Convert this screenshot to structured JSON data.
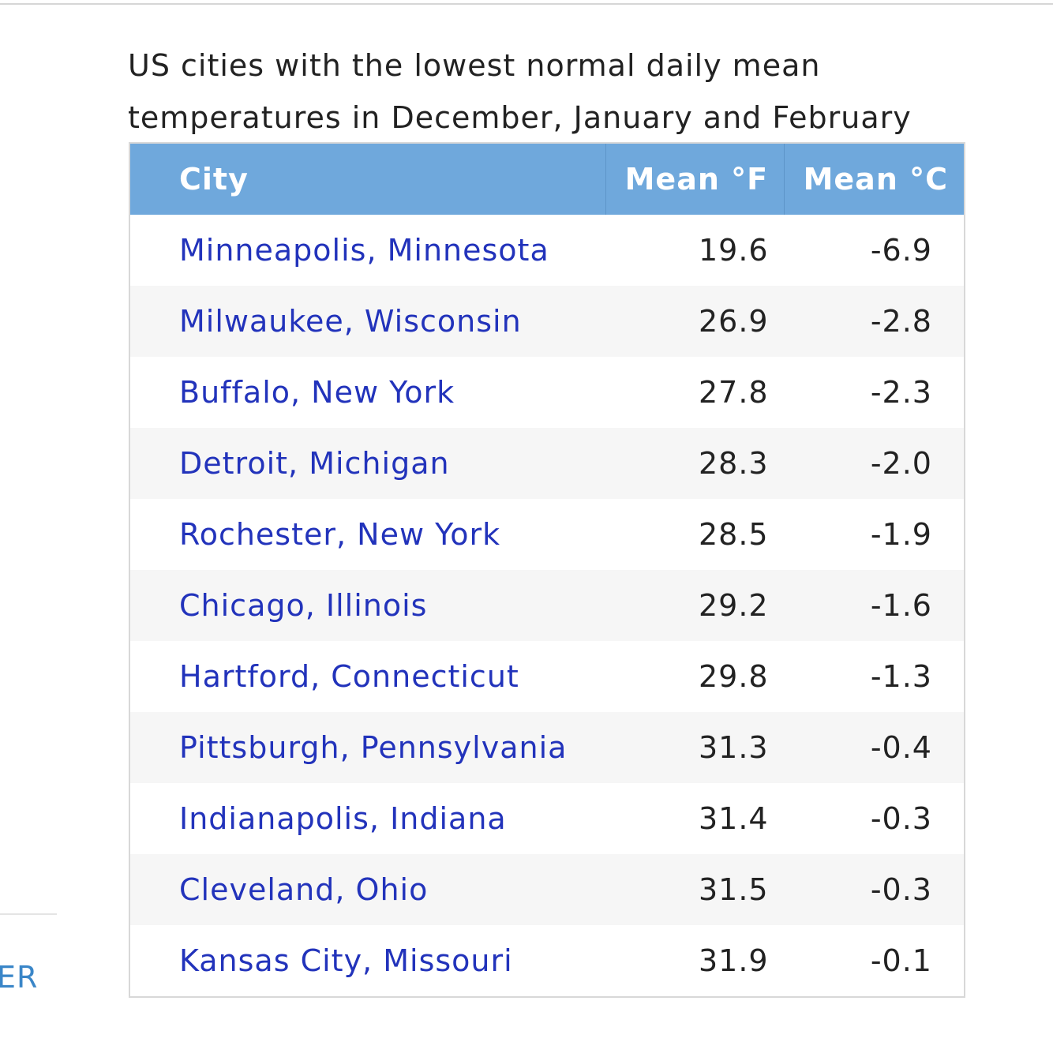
{
  "caption": "US cities with the lowest normal daily mean temperatures in December, January and February",
  "side_fragment": "ER",
  "table": {
    "headers": [
      "City",
      "Mean °F",
      "Mean °C"
    ],
    "rows": [
      [
        "Minneapolis, Minnesota",
        "19.6",
        "-6.9"
      ],
      [
        "Milwaukee, Wisconsin",
        "26.9",
        "-2.8"
      ],
      [
        "Buffalo, New York",
        "27.8",
        "-2.3"
      ],
      [
        "Detroit, Michigan",
        "28.3",
        "-2.0"
      ],
      [
        "Rochester, New York",
        "28.5",
        "-1.9"
      ],
      [
        "Chicago, Illinois",
        "29.2",
        "-1.6"
      ],
      [
        "Hartford, Connecticut",
        "29.8",
        "-1.3"
      ],
      [
        "Pittsburgh, Pennsylvania",
        "31.3",
        "-0.4"
      ],
      [
        "Indianapolis, Indiana",
        "31.4",
        "-0.3"
      ],
      [
        "Cleveland, Ohio",
        "31.5",
        "-0.3"
      ],
      [
        "Kansas City, Missouri",
        "31.9",
        "-0.1"
      ]
    ]
  }
}
